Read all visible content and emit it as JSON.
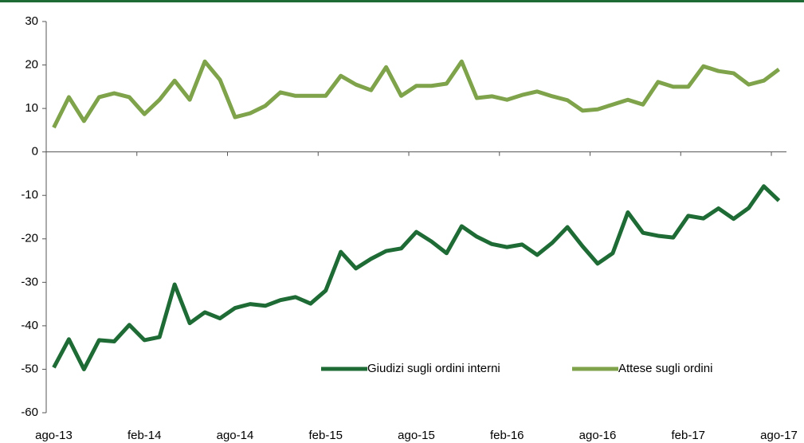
{
  "chart_data": {
    "type": "line",
    "categories": [
      "ago-13",
      null,
      null,
      null,
      null,
      null,
      "feb-14",
      null,
      null,
      null,
      null,
      null,
      "ago-14",
      null,
      null,
      null,
      null,
      null,
      "feb-15",
      null,
      null,
      null,
      null,
      null,
      "ago-15",
      null,
      null,
      null,
      null,
      null,
      "feb-16",
      null,
      null,
      null,
      null,
      null,
      "ago-16",
      null,
      null,
      null,
      null,
      null,
      "feb-17",
      null,
      null,
      null,
      null,
      null,
      "ago-17"
    ],
    "series": [
      {
        "name": "Giudizi sugli ordini interni",
        "color": "#1e6b35",
        "values": [
          -49.6,
          -43.1,
          -50,
          -43.3,
          -43.6,
          -39.8,
          -43.3,
          -42.6,
          -30.5,
          -39.4,
          -36.9,
          -38.3,
          -35.9,
          -35,
          -35.4,
          -34.1,
          -33.4,
          -34.9,
          -31.9,
          -23,
          -26.8,
          -24.6,
          -22.8,
          -22.2,
          -18.4,
          -20.6,
          -23.3,
          -17.1,
          -19.5,
          -21.2,
          -21.9,
          -21.3,
          -23.7,
          -20.9,
          -17.3,
          -21.7,
          -25.7,
          -23.3,
          -13.9,
          -18.6,
          -19.3,
          -19.7,
          -14.7,
          -15.3,
          -13,
          -15.4,
          -12.9,
          -7.9,
          -11.2
        ]
      },
      {
        "name": "Attese sugli ordini",
        "color": "#7fa34a",
        "values": [
          5.6,
          12.6,
          7.1,
          12.6,
          13.5,
          12.6,
          8.7,
          12,
          16.4,
          12,
          20.8,
          16.6,
          8,
          8.9,
          10.6,
          13.7,
          12.9,
          12.9,
          12.9,
          17.5,
          15.5,
          14.2,
          19.5,
          12.9,
          15.2,
          15.2,
          15.7,
          20.8,
          12.4,
          12.8,
          12,
          13.1,
          13.9,
          12.8,
          11.9,
          9.5,
          9.8,
          10.9,
          12,
          10.9,
          16.1,
          15,
          15,
          19.7,
          18.6,
          18.1,
          15.5,
          16.4,
          19
        ]
      }
    ],
    "ylim": [
      -60,
      30
    ],
    "yticks": [
      -60,
      -50,
      -40,
      -30,
      -20,
      -10,
      0,
      10,
      20,
      30
    ],
    "grid": false,
    "legend": "bottom-right"
  }
}
